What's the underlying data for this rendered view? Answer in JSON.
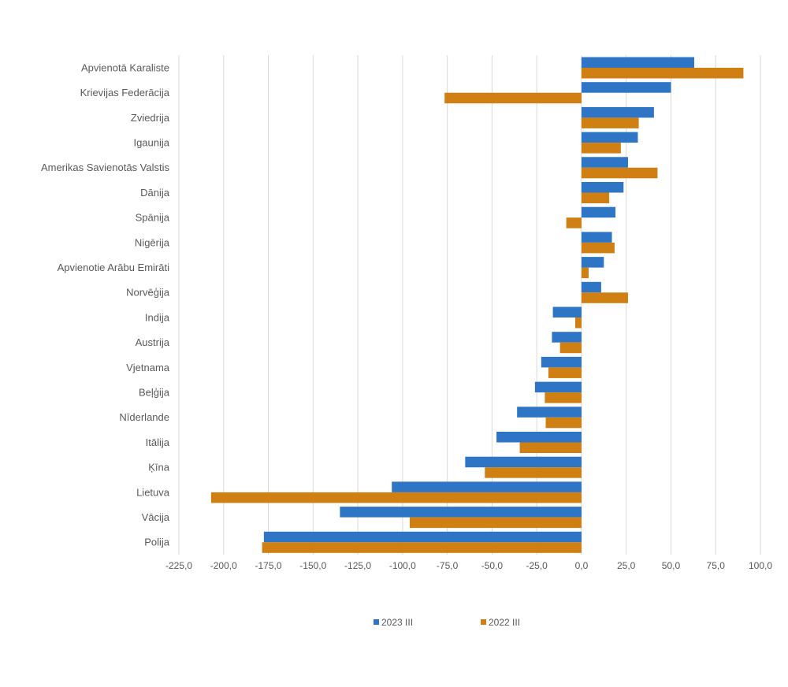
{
  "chart_data": {
    "type": "bar",
    "orientation": "horizontal",
    "categories": [
      "Apvienotā Karaliste",
      "Krievijas Federācija",
      "Zviedrija",
      "Igaunija",
      "Amerikas Savienotās Valstis",
      "Dānija",
      "Spānija",
      "Nigērija",
      "Apvienotie Arābu Emirāti",
      "Norvēģija",
      "Indija",
      "Austrija",
      "Vjetnama",
      "Beļģija",
      "Nīderlande",
      "Itālija",
      "Ķīna",
      "Lietuva",
      "Vācija",
      "Polija"
    ],
    "series": [
      {
        "name": "2023 III",
        "color": "#2e75c5",
        "values": [
          63,
          50,
          40.5,
          31.5,
          26,
          23.5,
          19,
          17,
          12.5,
          11,
          -16,
          -16.5,
          -22.5,
          -26,
          -36,
          -47.5,
          -65,
          -106,
          -135,
          -177.5
        ]
      },
      {
        "name": "2022 III",
        "color": "#d07f12",
        "values": [
          90.5,
          -76.5,
          32,
          22,
          42.5,
          15.5,
          -8.5,
          18.5,
          4,
          26,
          -3.5,
          -12,
          -18.5,
          -20.5,
          -20,
          -34.5,
          -54,
          -207,
          -96,
          -178.5
        ]
      }
    ],
    "xlim": [
      -225,
      100
    ],
    "xticks": [
      "-225,0",
      "-200,0",
      "-175,0",
      "-150,0",
      "-125,0",
      "-100,0",
      "-75,0",
      "-50,0",
      "-25,0",
      "0,0",
      "25,0",
      "50,0",
      "75,0",
      "100,0"
    ],
    "grid": true,
    "legend_position": "bottom",
    "title": "",
    "xlabel": "",
    "ylabel": ""
  }
}
